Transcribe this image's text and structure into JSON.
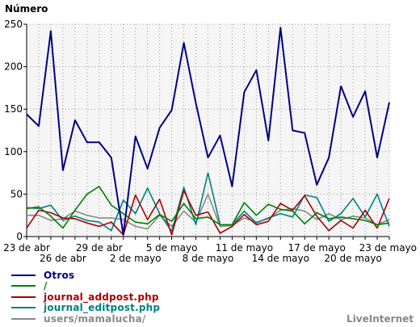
{
  "chart_data": {
    "type": "line",
    "ylabel": "Número",
    "ylim": [
      0,
      250
    ],
    "yticks": [
      0,
      50,
      100,
      150,
      200,
      250
    ],
    "xlim": [
      "23 de abr",
      "23 de mayo"
    ],
    "x": [
      "23 de abr",
      "24 de abr",
      "25 de abr",
      "26 de abr",
      "27 de abr",
      "28 de abr",
      "29 de abr",
      "30 de abr",
      "1 de mayo",
      "2 de mayo",
      "3 de mayo",
      "4 de mayo",
      "5 de mayo",
      "6 de mayo",
      "7 de mayo",
      "8 de mayo",
      "9 de mayo",
      "10 de mayo",
      "11 de mayo",
      "12 de mayo",
      "13 de mayo",
      "14 de mayo",
      "15 de mayo",
      "16 de mayo",
      "17 de mayo",
      "18 de mayo",
      "19 de mayo",
      "20 de mayo",
      "21 de mayo",
      "22 de mayo",
      "23 de mayo"
    ],
    "xtick_labels_top": [
      {
        "label": "23 de abr",
        "x": "23 de abr"
      },
      {
        "label": "29 de abr",
        "x": "29 de abr"
      },
      {
        "label": "5 de mayo",
        "x": "5 de mayo"
      },
      {
        "label": "11 de mayo",
        "x": "11 de mayo"
      },
      {
        "label": "17 de mayo",
        "x": "17 de mayo"
      },
      {
        "label": "23 de mayo",
        "x": "23 de mayo"
      }
    ],
    "xtick_labels_bottom": [
      {
        "label": "26 de abr",
        "x": "26 de abr"
      },
      {
        "label": "2 de mayo",
        "x": "2 de mayo"
      },
      {
        "label": "8 de mayo",
        "x": "8 de mayo"
      },
      {
        "label": "14 de mayo",
        "x": "14 de mayo"
      },
      {
        "label": "20 de mayo",
        "x": "20 de mayo"
      }
    ],
    "grid": true,
    "legend_position": "bottom-left",
    "series": [
      {
        "name": "Otros",
        "color": "#000080",
        "values": [
          144,
          130,
          242,
          78,
          137,
          111,
          111,
          93,
          2,
          118,
          80,
          128,
          149,
          228,
          157,
          93,
          119,
          59,
          170,
          196,
          113,
          246,
          125,
          122,
          61,
          93,
          177,
          141,
          171,
          93,
          158
        ]
      },
      {
        "name": "/",
        "color": "#008000",
        "values": [
          33,
          35,
          24,
          10,
          31,
          50,
          59,
          37,
          27,
          17,
          15,
          26,
          18,
          39,
          21,
          23,
          14,
          14,
          40,
          25,
          38,
          32,
          30,
          15,
          28,
          21,
          23,
          21,
          19,
          14,
          16
        ]
      },
      {
        "name": "journal_addpost.php",
        "color": "#aa0000",
        "values": [
          10,
          31,
          28,
          22,
          21,
          16,
          12,
          17,
          2,
          49,
          20,
          44,
          2,
          54,
          25,
          29,
          4,
          12,
          26,
          14,
          18,
          39,
          31,
          48,
          24,
          7,
          19,
          10,
          31,
          10,
          45
        ]
      },
      {
        "name": "journal_editpost.php",
        "color": "#008080",
        "values": [
          34,
          33,
          37,
          19,
          24,
          19,
          17,
          7,
          43,
          27,
          57,
          27,
          6,
          58,
          14,
          75,
          14,
          14,
          30,
          16,
          22,
          27,
          23,
          49,
          46,
          18,
          27,
          45,
          23,
          50,
          12
        ]
      },
      {
        "name": "users/mamalucha/",
        "color": "#888888",
        "values": [
          25,
          25,
          19,
          21,
          30,
          25,
          22,
          22,
          20,
          12,
          9,
          25,
          12,
          30,
          17,
          50,
          12,
          13,
          22,
          17,
          21,
          31,
          33,
          30,
          20,
          27,
          20,
          24,
          22,
          14,
          20
        ]
      }
    ]
  },
  "brand": "LiveInternet"
}
